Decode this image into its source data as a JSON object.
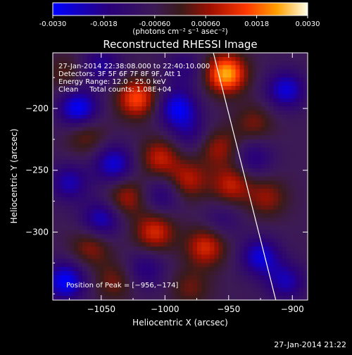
{
  "colorbar": {
    "tick_labels": [
      "-0.0030",
      "-0.0018",
      "-0.00060",
      "0.00060",
      "0.0018",
      "0.0030"
    ],
    "tick_values": [
      -0.003,
      -0.0018,
      -0.0006,
      0.0006,
      0.0018,
      0.003
    ],
    "range": [
      -0.003,
      0.003
    ],
    "unit_label": "(photons cm⁻² s⁻¹ asec⁻²)"
  },
  "chart_data": {
    "type": "heatmap",
    "title": "Reconstructed RHESSI Image",
    "xlabel": "Heliocentric X (arcsec)",
    "ylabel": "Heliocentric Y (arcsec)",
    "xlim": [
      -1088,
      -888
    ],
    "ylim": [
      -355,
      -155
    ],
    "x_ticks": [
      -1050,
      -1000,
      -950,
      -900
    ],
    "x_tick_labels": [
      "−1050",
      "−1000",
      "−950",
      "−900"
    ],
    "y_ticks": [
      -300,
      -250,
      -200
    ],
    "y_tick_labels": [
      "−300",
      "−250",
      "−200"
    ],
    "info_lines": [
      "27-Jan-2014 22:38:08.000 to 22:40:10.000",
      "Detectors: 3F 5F 6F 7F 8F 9F, Att 1",
      "Energy Range: 12.0 - 25.0 keV",
      "Clean     Total counts: 1.08E+04"
    ],
    "peak_label": "Position of Peak = [−956,−174]",
    "peak": [
      -956,
      -174
    ],
    "limb": [
      [
        -962,
        -155
      ],
      [
        -913,
        -355
      ]
    ],
    "sources": [
      {
        "x": -952,
        "y": -172,
        "value": 0.003
      },
      {
        "x": -1022,
        "y": -192,
        "value": 0.0022
      },
      {
        "x": -1004,
        "y": -240,
        "value": 0.0016
      },
      {
        "x": -982,
        "y": -258,
        "value": 0.0015
      },
      {
        "x": -1030,
        "y": -272,
        "value": 0.0014
      },
      {
        "x": -948,
        "y": -262,
        "value": 0.0016
      },
      {
        "x": -958,
        "y": -232,
        "value": 0.0013
      },
      {
        "x": -1062,
        "y": -222,
        "value": 0.001
      },
      {
        "x": -1008,
        "y": -300,
        "value": 0.0018
      },
      {
        "x": -968,
        "y": -312,
        "value": 0.0018
      },
      {
        "x": -1058,
        "y": -312,
        "value": 0.0012
      },
      {
        "x": -920,
        "y": -272,
        "value": 0.0012
      },
      {
        "x": -930,
        "y": -212,
        "value": 0.001
      },
      {
        "x": -1040,
        "y": -340,
        "value": 0.001
      },
      {
        "x": -980,
        "y": -345,
        "value": 0.0009
      },
      {
        "x": -1078,
        "y": -172,
        "value": 0.0008
      },
      {
        "x": -1068,
        "y": -200,
        "value": -0.0024
      },
      {
        "x": -990,
        "y": -200,
        "value": -0.0022
      },
      {
        "x": -1040,
        "y": -245,
        "value": -0.002
      },
      {
        "x": -1075,
        "y": -260,
        "value": -0.0016
      },
      {
        "x": -1050,
        "y": -290,
        "value": -0.0018
      },
      {
        "x": -1078,
        "y": -340,
        "value": -0.0024
      },
      {
        "x": -905,
        "y": -185,
        "value": -0.002
      },
      {
        "x": -925,
        "y": -320,
        "value": -0.002
      },
      {
        "x": -1002,
        "y": -270,
        "value": -0.0012
      },
      {
        "x": -980,
        "y": -220,
        "value": -0.001
      },
      {
        "x": -930,
        "y": -240,
        "value": -0.0012
      },
      {
        "x": -905,
        "y": -340,
        "value": -0.0016
      },
      {
        "x": -1015,
        "y": -330,
        "value": -0.0012
      },
      {
        "x": -955,
        "y": -290,
        "value": -0.0008
      },
      {
        "x": -1050,
        "y": -165,
        "value": -0.0014
      },
      {
        "x": -985,
        "y": -168,
        "value": -0.001
      }
    ]
  },
  "footer": {
    "timestamp": "27-Jan-2014 21:22"
  }
}
